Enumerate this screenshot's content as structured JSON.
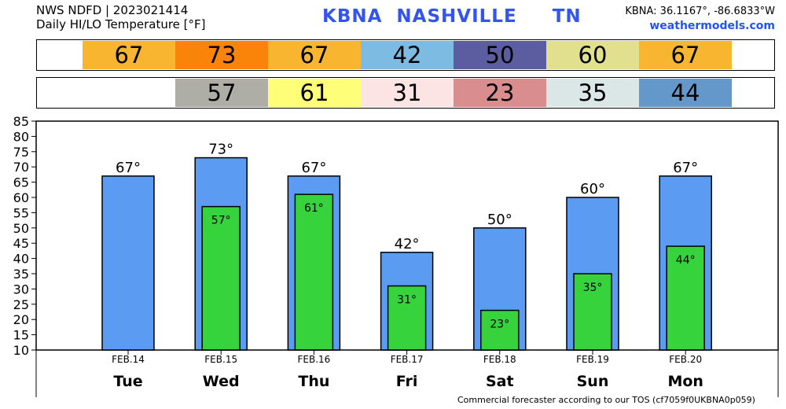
{
  "header": {
    "line1": "NWS NDFD | 2023021414",
    "line2": "Daily HI/LO Temperature [°F]",
    "station": "KBNA  NASHVILLE     TN",
    "coords": "KBNA: 36.1167°, -86.6833°W",
    "site": "weathermodels.com"
  },
  "colors": {
    "hi_bar": "#5b9cf2",
    "lo_bar": "#36d33c",
    "hi_strip": [
      "#f8b52f",
      "#f98409",
      "#f8b52f",
      "#7ebbe2",
      "#5b5da0",
      "#e0e08e",
      "#f8b52f"
    ],
    "lo_strip": [
      "",
      "#aeaea6",
      "#fefe78",
      "#fde4e4",
      "#d98d8e",
      "#dbe7e7",
      "#6497ca"
    ]
  },
  "chart_data": {
    "type": "bar",
    "categories": [
      "Tue",
      "Wed",
      "Thu",
      "Fri",
      "Sat",
      "Sun",
      "Mon"
    ],
    "dates": [
      "FEB.14",
      "FEB.15",
      "FEB.16",
      "FEB.17",
      "FEB.18",
      "FEB.19",
      "FEB.20"
    ],
    "series": [
      {
        "values": [
          67,
          73,
          67,
          42,
          50,
          60,
          67
        ],
        "labels": [
          "67°",
          "73°",
          "67°",
          "42°",
          "50°",
          "60°",
          "67°"
        ]
      },
      {
        "values": [
          null,
          57,
          61,
          31,
          23,
          35,
          44
        ],
        "labels": [
          "",
          "57°",
          "61°",
          "31°",
          "23°",
          "35°",
          "44°"
        ]
      }
    ],
    "ylim": [
      10,
      85
    ],
    "yticks": [
      "10",
      "15",
      "20",
      "25",
      "30",
      "35",
      "40",
      "45",
      "50",
      "55",
      "60",
      "65",
      "70",
      "75",
      "80",
      "85"
    ]
  },
  "strips": {
    "hi": [
      "67",
      "73",
      "67",
      "42",
      "50",
      "60",
      "67"
    ],
    "lo": [
      "",
      "57",
      "61",
      "31",
      "23",
      "35",
      "44"
    ]
  },
  "footer": "Commercial forecaster according to our TOS (cf7059f0UKBNA0p059)"
}
